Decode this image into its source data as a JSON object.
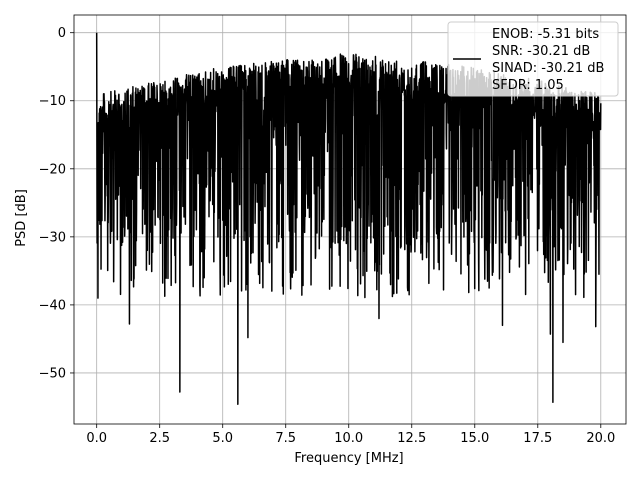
{
  "chart_data": {
    "type": "line",
    "title": "",
    "xlabel": "Frequency [MHz]",
    "ylabel": "PSD [dB]",
    "xlim": [
      -0.9,
      21.0
    ],
    "ylim": [
      -57.5,
      2.6
    ],
    "x_ticks": [
      0.0,
      2.5,
      5.0,
      7.5,
      10.0,
      12.5,
      15.0,
      17.5,
      20.0
    ],
    "x_tick_labels": [
      "0.0",
      "2.5",
      "5.0",
      "7.5",
      "10.0",
      "12.5",
      "15.0",
      "17.5",
      "20.0"
    ],
    "y_ticks": [
      0,
      -10,
      -20,
      -30,
      -40,
      -50
    ],
    "y_tick_labels": [
      "0",
      "−10",
      "−20",
      "−30",
      "−40",
      "−50"
    ],
    "grid": true,
    "legend_position": "top-right",
    "series": [
      {
        "color": "#000000",
        "x_range": [
          0.0,
          20.0
        ],
        "description_points": [
          {
            "x": 0.0,
            "y": 0.0
          },
          {
            "x": 0.05,
            "y": -39.0
          },
          {
            "x": 1.3,
            "y": -42.8
          },
          {
            "x": 3.3,
            "y": -52.8
          },
          {
            "x": 5.6,
            "y": -54.6
          },
          {
            "x": 6.0,
            "y": -44.8
          },
          {
            "x": 11.2,
            "y": -42.0
          },
          {
            "x": 16.1,
            "y": -43.0
          },
          {
            "x": 18.0,
            "y": -44.3
          },
          {
            "x": 18.1,
            "y": -54.3
          },
          {
            "x": 18.5,
            "y": -45.5
          },
          {
            "x": 19.8,
            "y": -43.2
          }
        ],
        "upper_envelope": [
          {
            "x": 0.1,
            "y": -9.0
          },
          {
            "x": 5.0,
            "y": -5.0
          },
          {
            "x": 10.0,
            "y": -3.0
          },
          {
            "x": 15.0,
            "y": -5.0
          },
          {
            "x": 20.0,
            "y": -9.0
          }
        ],
        "band_lower": -31.0
      }
    ]
  },
  "legend": {
    "line1": "ENOB: -5.31 bits",
    "line2": "SNR: -30.21 dB",
    "line3": "SINAD: -30.21 dB",
    "line4": "SFDR: 1.05"
  }
}
